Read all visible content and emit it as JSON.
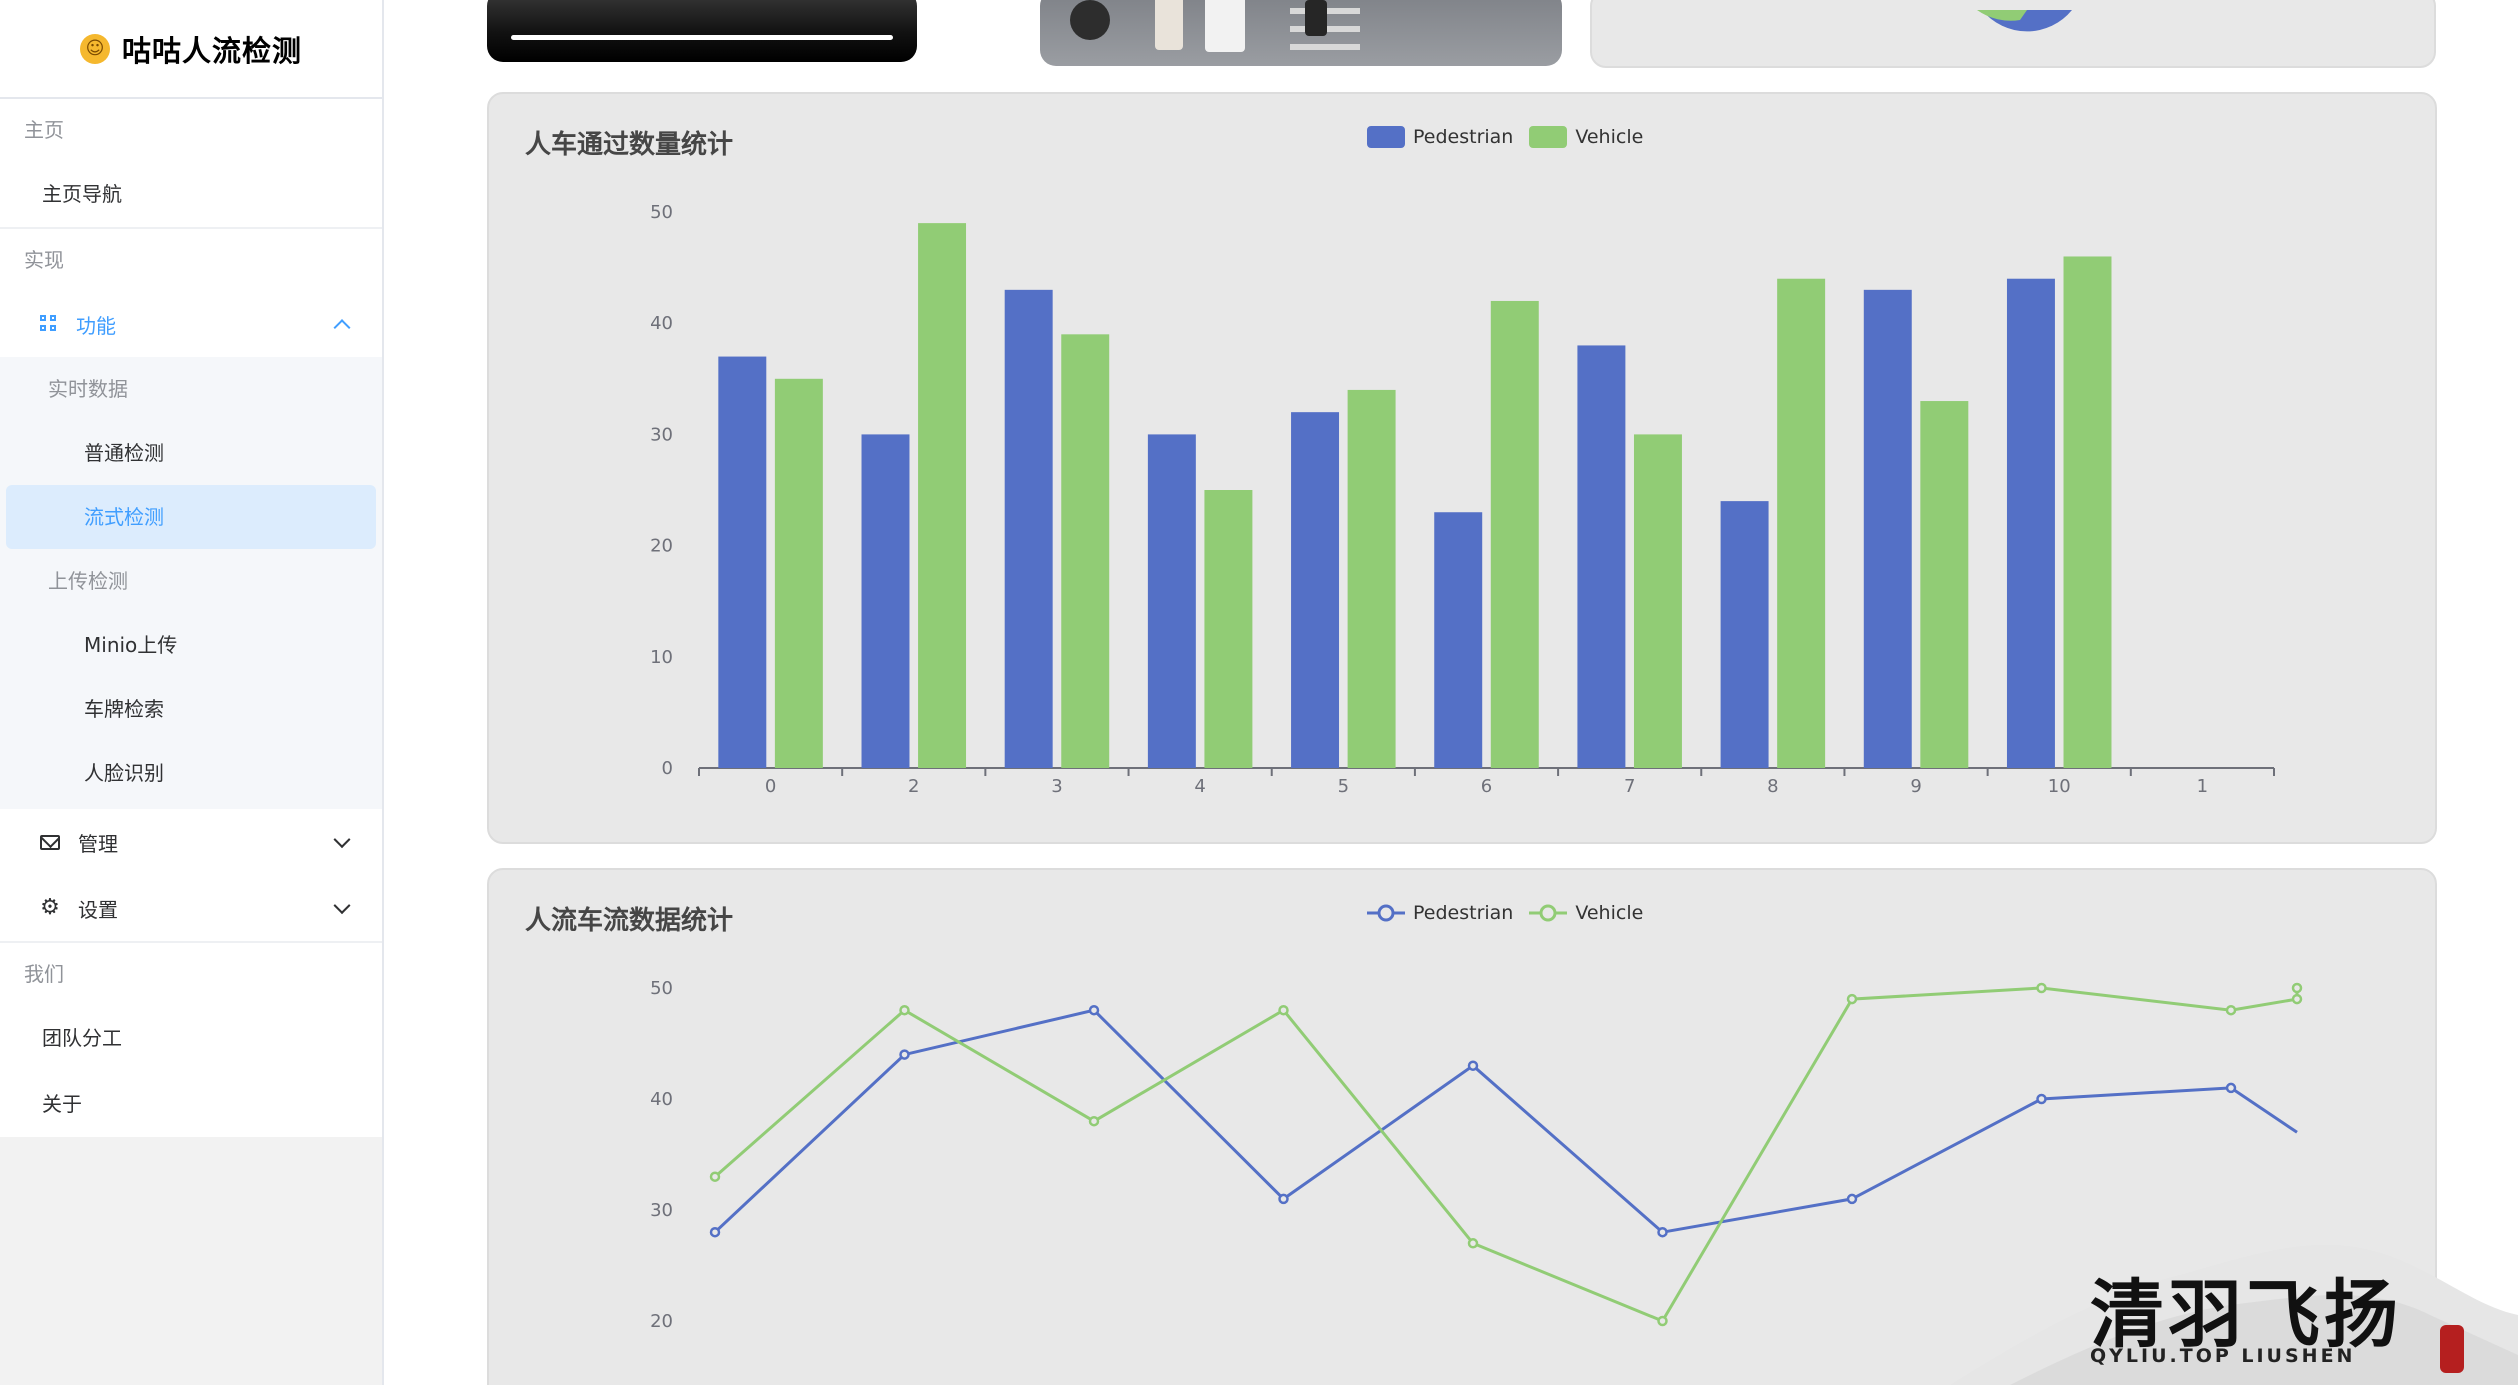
{
  "brand": {
    "title": "咕咕人流检测"
  },
  "sidebar": {
    "group_home": "主页",
    "home_nav": "主页导航",
    "group_impl": "实现",
    "feature_menu": "功能",
    "realtime_group": "实时数据",
    "normal_detect": "普通检测",
    "stream_detect": "流式检测",
    "upload_group": "上传检测",
    "minio_upload": "Minio上传",
    "plate_search": "车牌检索",
    "face_recognition": "人脸识别",
    "manage_menu": "管理",
    "settings_menu": "设置",
    "group_us": "我们",
    "team_division": "团队分工",
    "about": "关于"
  },
  "bar_card": {
    "title": "人车通过数量统计"
  },
  "line_card": {
    "title": "人流车流数据统计"
  },
  "legend": {
    "pedestrian": "Pedestrian",
    "vehicle": "Vehicle"
  },
  "colors": {
    "pedestrian": "#5470c6",
    "vehicle": "#91cc75",
    "accent": "#409eff"
  },
  "chart_data": [
    {
      "type": "bar",
      "title": "人车通过数量统计",
      "categories": [
        "0",
        "2",
        "3",
        "4",
        "5",
        "6",
        "7",
        "8",
        "9",
        "10",
        "1"
      ],
      "series": [
        {
          "name": "Pedestrian",
          "values": [
            37,
            30,
            43,
            30,
            32,
            23,
            38,
            24,
            43,
            44,
            null
          ]
        },
        {
          "name": "Vehicle",
          "values": [
            35,
            49,
            39,
            25,
            34,
            42,
            30,
            44,
            33,
            46,
            null
          ]
        }
      ],
      "ylim": [
        0,
        50
      ],
      "yticks": [
        0,
        10,
        20,
        30,
        40,
        50
      ],
      "legend_position": "top-center"
    },
    {
      "type": "line",
      "title": "人流车流数据统计",
      "series": [
        {
          "name": "Pedestrian",
          "values": [
            28,
            44,
            48,
            31,
            43,
            28,
            31,
            40,
            41,
            37
          ]
        },
        {
          "name": "Vehicle",
          "values": [
            33,
            48,
            38,
            48,
            27,
            20,
            49,
            50,
            48,
            49,
            50
          ]
        }
      ],
      "yticks": [
        20,
        30,
        40,
        50
      ],
      "legend_position": "top-center"
    }
  ],
  "watermark": {
    "title": "清羽飞扬",
    "subtitle": "QYLIU.TOP  LIUSHEN"
  }
}
